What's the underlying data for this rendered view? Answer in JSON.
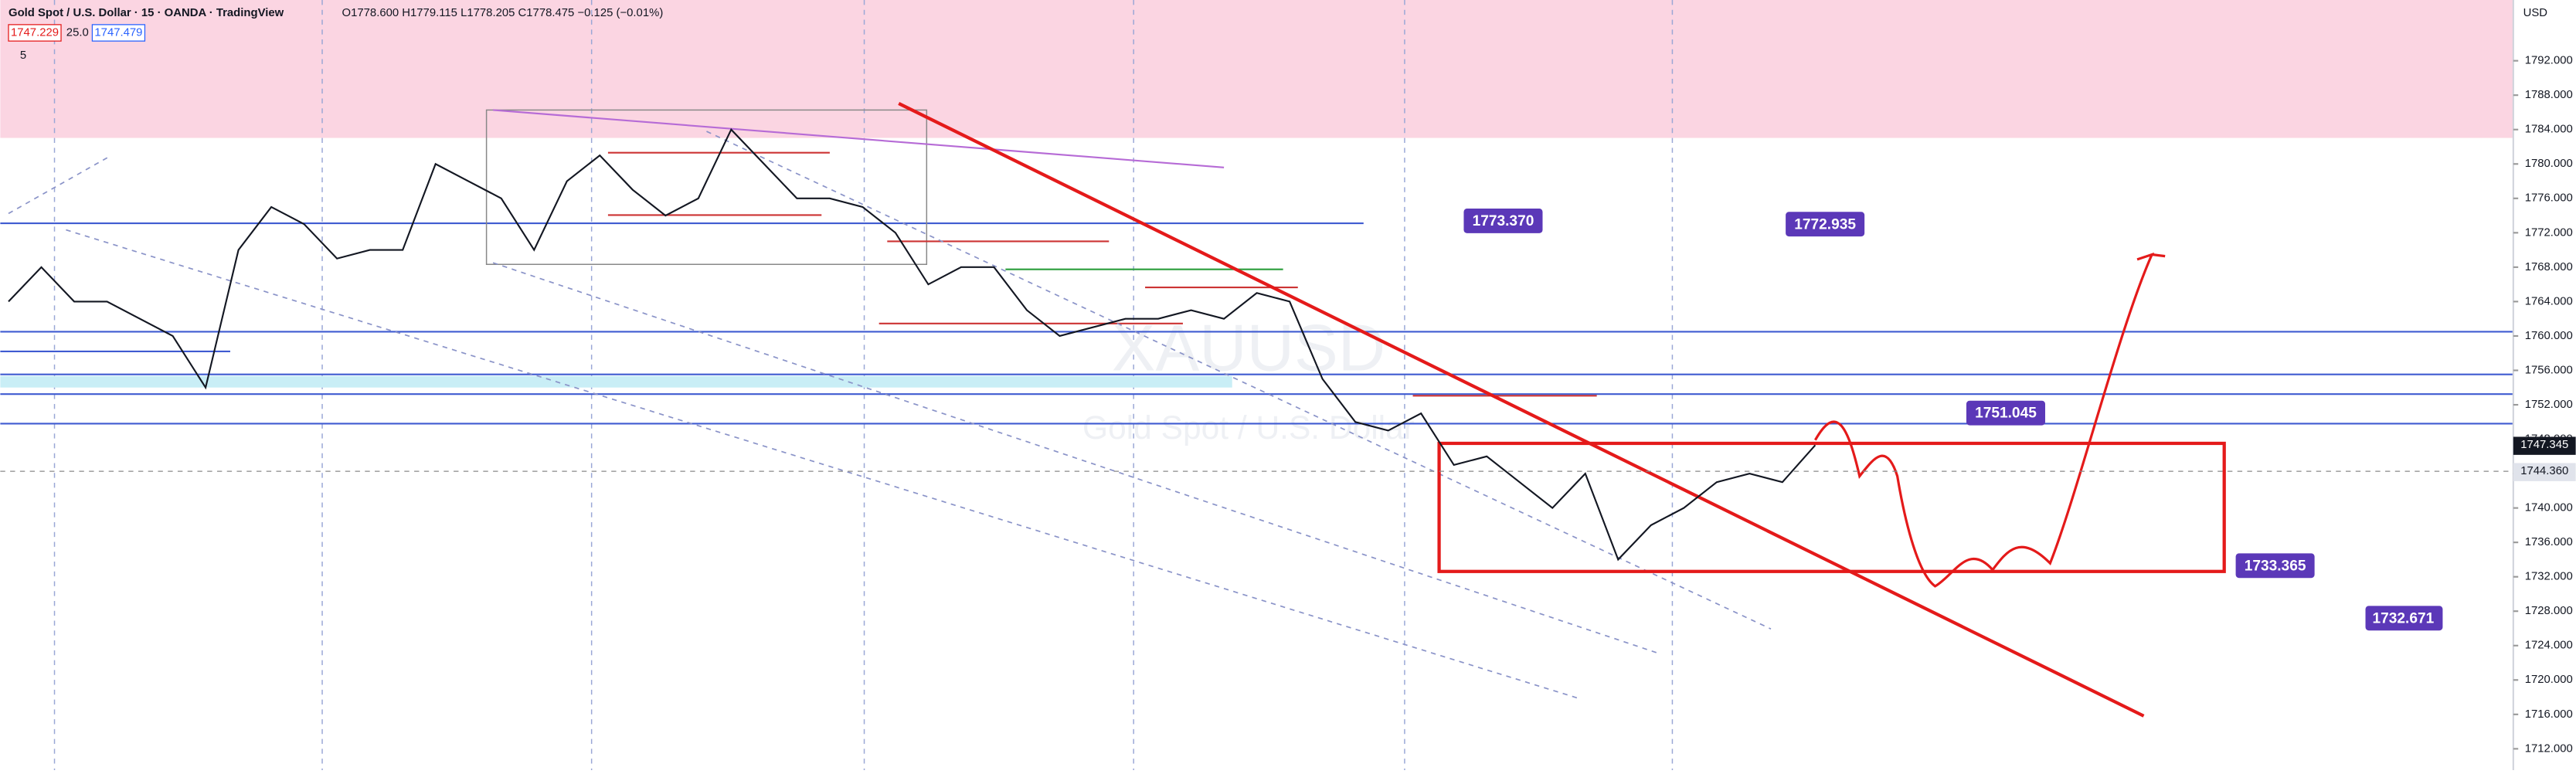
{
  "header": {
    "symbol": "Gold Spot / U.S. Dollar · 15 · OANDA · TradingView",
    "ohlc": "O1778.600 H1779.115 L1778.205 C1778.475 −0.125 (−0.01%)",
    "bid": "1747.229",
    "spread": "25.0",
    "ask": "1747.479",
    "indicator_count": "5",
    "currency": "USD"
  },
  "watermark": {
    "symbol": "XAUUSD",
    "description": "Gold Spot / U.S. Dollar"
  },
  "price_labels": {
    "last": "1747.345",
    "crosshair": "1744.360"
  },
  "annotations": [
    "1773.370",
    "1772.935",
    "1751.045",
    "1733.365",
    "1732.671"
  ],
  "chart_data": {
    "type": "line",
    "color": "#131722",
    "values": [
      1764,
      1768,
      1764,
      1764,
      1762,
      1760,
      1754,
      1770,
      1775,
      1773,
      1769,
      1770,
      1770,
      1780,
      1778,
      1776,
      1770,
      1778,
      1781,
      1777,
      1774,
      1776,
      1784,
      1780,
      1776,
      1776,
      1775,
      1772,
      1766,
      1768,
      1768,
      1763,
      1760,
      1761,
      1762,
      1762,
      1763,
      1762,
      1765,
      1764,
      1755,
      1750,
      1749,
      1751,
      1745,
      1746,
      1743,
      1740,
      1744,
      1734,
      1738,
      1740,
      1743,
      1744,
      1743,
      1747.3
    ],
    "ylim": [
      1710,
      1796
    ],
    "yticks": [
      {
        "value": 1712,
        "label": "1712.000"
      },
      {
        "value": 1716,
        "label": "1716.000"
      },
      {
        "value": 1720,
        "label": "1720.000"
      },
      {
        "value": 1724,
        "label": "1724.000"
      },
      {
        "value": 1728,
        "label": "1728.000"
      },
      {
        "value": 1732,
        "label": "1732.000"
      },
      {
        "value": 1736,
        "label": "1736.000"
      },
      {
        "value": 1740,
        "label": "1740.000"
      },
      {
        "value": 1744,
        "label": "1744.000"
      },
      {
        "value": 1748,
        "label": "1748.000"
      },
      {
        "value": 1752,
        "label": "1752.000"
      },
      {
        "value": 1756,
        "label": "1756.000"
      },
      {
        "value": 1760,
        "label": "1760.000"
      },
      {
        "value": 1764,
        "label": "1764.000"
      },
      {
        "value": 1768,
        "label": "1768.000"
      },
      {
        "value": 1772,
        "label": "1772.000"
      },
      {
        "value": 1776,
        "label": "1776.000"
      },
      {
        "value": 1780,
        "label": "1780.000"
      },
      {
        "value": 1784,
        "label": "1784.000"
      },
      {
        "value": 1788,
        "label": "1788.000"
      },
      {
        "value": 1792,
        "label": "1792.000"
      }
    ]
  }
}
